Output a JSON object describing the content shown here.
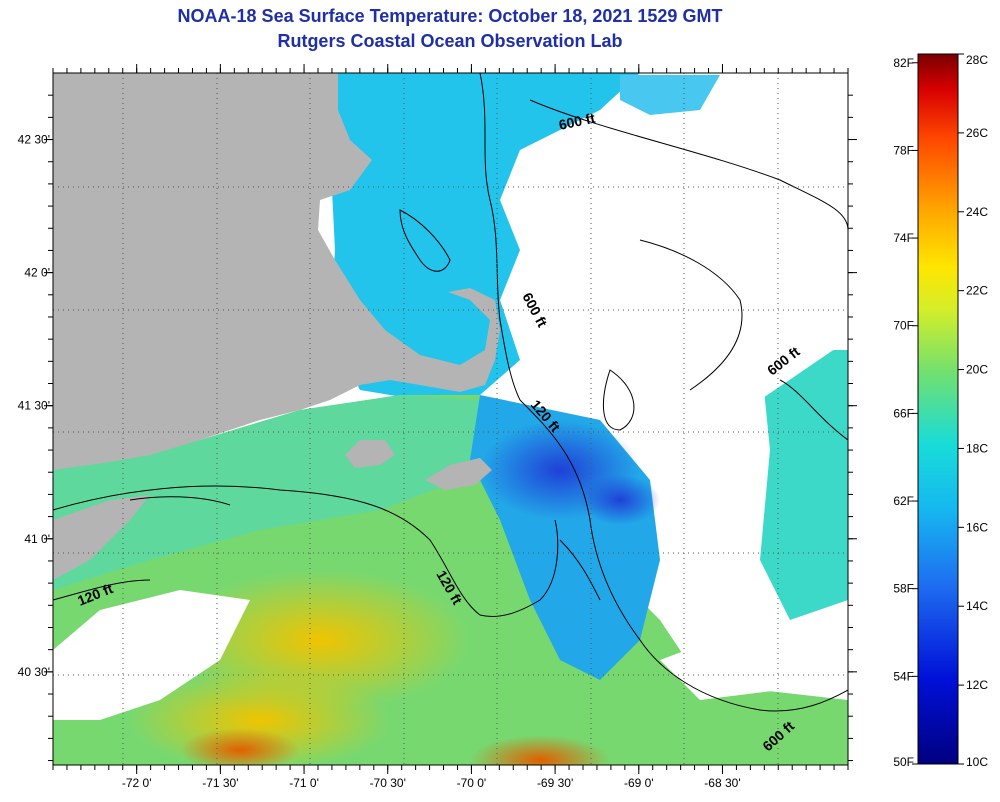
{
  "title": {
    "line1": "NOAA-18 Sea Surface Temperature:  October 18, 2021 1529 GMT",
    "line2": "Rutgers Coastal Ocean Observation Lab"
  },
  "map": {
    "lon_range": [
      -72.5,
      -67.75
    ],
    "lat_range": [
      40.15,
      42.75
    ],
    "lon_ticks": [
      {
        "value": -72.0,
        "label": "-72 0'"
      },
      {
        "value": -71.5,
        "label": "-71 30'"
      },
      {
        "value": -71.0,
        "label": "-71 0'"
      },
      {
        "value": -70.5,
        "label": "-70 30'"
      },
      {
        "value": -70.0,
        "label": "-70 0'"
      },
      {
        "value": -69.5,
        "label": "-69 30'"
      },
      {
        "value": -69.0,
        "label": "-69 0'"
      },
      {
        "value": -68.5,
        "label": "-68 30'"
      }
    ],
    "lat_ticks": [
      {
        "value": 42.5,
        "label": "42 30'"
      },
      {
        "value": 42.0,
        "label": "42 0'"
      },
      {
        "value": 41.5,
        "label": "41 30'"
      },
      {
        "value": 41.0,
        "label": "41 0'"
      },
      {
        "value": 40.5,
        "label": "40 30'"
      }
    ],
    "isobath_labels": [
      "600 ft",
      "600 ft",
      "600 ft",
      "600 ft",
      "120 ft",
      "120 ft",
      "120 ft"
    ],
    "colors": {
      "land": "#b4b4b4",
      "cloud": "#ffffff"
    }
  },
  "colorbar": {
    "celsius_ticks": [
      {
        "value": 28,
        "label": "28C"
      },
      {
        "value": 26,
        "label": "26C"
      },
      {
        "value": 24,
        "label": "24C"
      },
      {
        "value": 22,
        "label": "22C"
      },
      {
        "value": 20,
        "label": "20C"
      },
      {
        "value": 18,
        "label": "18C"
      },
      {
        "value": 16,
        "label": "16C"
      },
      {
        "value": 14,
        "label": "14C"
      },
      {
        "value": 12,
        "label": "12C"
      },
      {
        "value": 10,
        "label": "10C"
      }
    ],
    "fahrenheit_ticks": [
      {
        "value": 82,
        "label": "82F"
      },
      {
        "value": 78,
        "label": "78F"
      },
      {
        "value": 74,
        "label": "74F"
      },
      {
        "value": 70,
        "label": "70F"
      },
      {
        "value": 66,
        "label": "66F"
      },
      {
        "value": 62,
        "label": "62F"
      },
      {
        "value": 58,
        "label": "58F"
      },
      {
        "value": 54,
        "label": "54F"
      },
      {
        "value": 50,
        "label": "50F"
      }
    ],
    "range_celsius": [
      10,
      28
    ]
  }
}
